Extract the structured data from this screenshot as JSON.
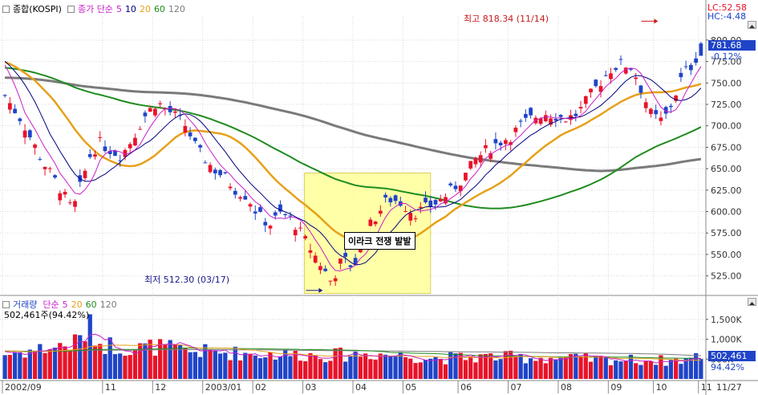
{
  "header": {
    "main_label": "종합(KOSPI)",
    "ma_title": "종가 단순",
    "ma_periods": [
      "5",
      "10",
      "20",
      "60",
      "120"
    ],
    "lc_label": "LC:52.58",
    "hc_label": "HC:-4.48"
  },
  "volume_header": {
    "label": "거래량",
    "ma_title": "단순",
    "ma_periods": [
      "5",
      "20",
      "60",
      "120"
    ],
    "value_line": "502,461주(94.42%)"
  },
  "colors": {
    "up": "#e8132a",
    "down": "#1f44c8",
    "ma5": "#c81fc8",
    "ma10": "#000080",
    "ma20": "#e6a11a",
    "ma60": "#1f8c1f",
    "ma120": "#7a7a7a",
    "highlight": "#ffff99",
    "price_tag": "#1f44c8"
  },
  "annotations": {
    "high": "최고 818.34 (11/14)",
    "low": "최저 512.30 (03/17)",
    "event": "이라크 전쟁 발발"
  },
  "current_tags": {
    "price": "781.68",
    "change": "-0.12%",
    "volume": "502,461",
    "volume_pct": "94.42%"
  },
  "chart_data": [
    {
      "type": "candlestick",
      "title": "종합(KOSPI)",
      "y_ticks": [
        "800.00",
        "775.00",
        "750.00",
        "725.00",
        "700.00",
        "675.00",
        "650.00",
        "625.00",
        "600.00",
        "575.00",
        "550.00",
        "525.00"
      ],
      "ylim": [
        505,
        828
      ],
      "x_ticks": [
        "2002/09",
        "11",
        "12",
        "2003/01",
        "02",
        "03",
        "04",
        "05",
        "06",
        "07",
        "08",
        "09",
        "10",
        "11",
        "11/27"
      ],
      "close_anchors": [
        [
          "2002/09",
          735
        ],
        [
          "09-10",
          705
        ],
        [
          "09-20",
          660
        ],
        [
          "09-30",
          625
        ],
        [
          "10-07",
          600
        ],
        [
          "10-14",
          635
        ],
        [
          "10-21",
          668
        ],
        [
          "10-28",
          680
        ],
        [
          "11-04",
          672
        ],
        [
          "11-11",
          665
        ],
        [
          "11-18",
          685
        ],
        [
          "11-25",
          710
        ],
        [
          "12-02",
          728
        ],
        [
          "12-06",
          722
        ],
        [
          "12-13",
          712
        ],
        [
          "12-20",
          700
        ],
        [
          "12-27",
          672
        ],
        [
          "2003-01-06",
          650
        ],
        [
          "01-13",
          640
        ],
        [
          "01-20",
          625
        ],
        [
          "01-27",
          618
        ],
        [
          "02-03",
          595
        ],
        [
          "02-10",
          585
        ],
        [
          "02-17",
          598
        ],
        [
          "02-24",
          590
        ],
        [
          "03-03",
          560
        ],
        [
          "03-10",
          540
        ],
        [
          "03-17",
          518
        ],
        [
          "03-24",
          545
        ],
        [
          "03-31",
          535
        ],
        [
          "04-07",
          575
        ],
        [
          "04-14",
          595
        ],
        [
          "04-21",
          615
        ],
        [
          "04-28",
          612
        ],
        [
          "05-06",
          598
        ],
        [
          "05-13",
          605
        ],
        [
          "05-20",
          612
        ],
        [
          "05-27",
          625
        ],
        [
          "06-03",
          640
        ],
        [
          "06-10",
          660
        ],
        [
          "06-17",
          672
        ],
        [
          "06-24",
          680
        ],
        [
          "07-01",
          688
        ],
        [
          "07-08",
          702
        ],
        [
          "07-15",
          710
        ],
        [
          "07-22",
          715
        ],
        [
          "07-29",
          712
        ],
        [
          "08-05",
          708
        ],
        [
          "08-12",
          715
        ],
        [
          "08-19",
          735
        ],
        [
          "08-26",
          752
        ],
        [
          "09-02",
          768
        ],
        [
          "09-09",
          772
        ],
        [
          "09-16",
          768
        ],
        [
          "09-22",
          742
        ],
        [
          "09-29",
          712
        ],
        [
          "10-06",
          705
        ],
        [
          "10-13",
          730
        ],
        [
          "10-20",
          762
        ],
        [
          "10-27",
          772
        ],
        [
          "11-03",
          795
        ],
        [
          "11-10",
          808
        ],
        [
          "11-14",
          812
        ],
        [
          "11-18",
          800
        ],
        [
          "11-21",
          770
        ],
        [
          "11-24",
          772
        ],
        [
          "11-27",
          781.68
        ]
      ],
      "high": {
        "value": 818.34,
        "date": "11/14"
      },
      "low": {
        "value": 512.3,
        "date": "03/17"
      },
      "last": 781.68,
      "change_pct": -0.12
    },
    {
      "type": "bar",
      "title": "거래량",
      "y_ticks": [
        "1,500K",
        "1,000K",
        "500K"
      ],
      "ylim": [
        0,
        1900000
      ],
      "volume_anchors": [
        [
          "2002/09",
          620000
        ],
        [
          "10-07",
          880000
        ],
        [
          "10-14",
          1050000
        ],
        [
          "10-21",
          1300000
        ],
        [
          "10-28",
          900000
        ],
        [
          "11-18",
          760000
        ],
        [
          "12-02",
          820000
        ],
        [
          "12-20",
          700000
        ],
        [
          "2003-01-06",
          680000
        ],
        [
          "01-27",
          640000
        ],
        [
          "02-17",
          620000
        ],
        [
          "03-17",
          600000
        ],
        [
          "04-14",
          640000
        ],
        [
          "05-20",
          520000
        ],
        [
          "06-17",
          560000
        ],
        [
          "07-15",
          540000
        ],
        [
          "08-19",
          500000
        ],
        [
          "09-16",
          480000
        ],
        [
          "10-13",
          460000
        ],
        [
          "11-14",
          560000
        ],
        [
          "11-27",
          502461
        ]
      ],
      "last": 502461,
      "last_pct": 94.42
    }
  ]
}
